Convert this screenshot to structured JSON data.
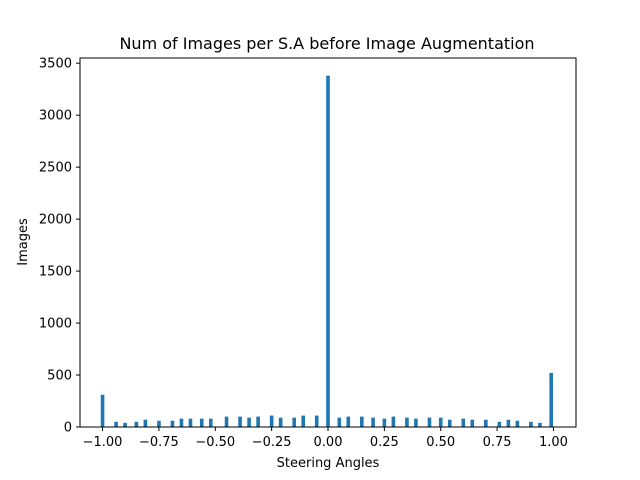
{
  "chart_data": {
    "type": "bar",
    "title": "Num of Images per S.A before Image Augmentation",
    "xlabel": "Steering Angles",
    "ylabel": "Images",
    "xlim": [
      -1.1,
      1.1
    ],
    "ylim": [
      0,
      3550
    ],
    "bar_width": 0.016,
    "bar_color": "#1f77b4",
    "xticks": [
      -1.0,
      -0.75,
      -0.5,
      -0.25,
      0.0,
      0.25,
      0.5,
      0.75,
      1.0
    ],
    "xtick_labels": [
      "−1.00",
      "−0.75",
      "−0.50",
      "−0.25",
      "0.00",
      "0.25",
      "0.50",
      "0.75",
      "1.00"
    ],
    "yticks": [
      0,
      500,
      1000,
      1500,
      2000,
      2500,
      3000,
      3500
    ],
    "ytick_labels": [
      "0",
      "500",
      "1000",
      "1500",
      "2000",
      "2500",
      "3000",
      "3500"
    ],
    "grid": false,
    "series": [
      {
        "x": [
          -1.0,
          -0.94,
          -0.9,
          -0.85,
          -0.81,
          -0.75,
          -0.69,
          -0.65,
          -0.61,
          -0.56,
          -0.52,
          -0.45,
          -0.39,
          -0.35,
          -0.31,
          -0.25,
          -0.21,
          -0.15,
          -0.11,
          -0.05,
          0.0,
          0.05,
          0.09,
          0.15,
          0.2,
          0.25,
          0.29,
          0.35,
          0.39,
          0.45,
          0.5,
          0.54,
          0.6,
          0.64,
          0.7,
          0.76,
          0.8,
          0.84,
          0.9,
          0.94,
          0.99
        ],
        "values": [
          310,
          50,
          40,
          50,
          70,
          60,
          60,
          80,
          80,
          80,
          80,
          100,
          100,
          90,
          100,
          110,
          90,
          90,
          110,
          110,
          3380,
          90,
          100,
          100,
          90,
          80,
          100,
          90,
          80,
          90,
          90,
          70,
          80,
          70,
          70,
          50,
          70,
          60,
          50,
          40,
          520
        ]
      }
    ]
  }
}
